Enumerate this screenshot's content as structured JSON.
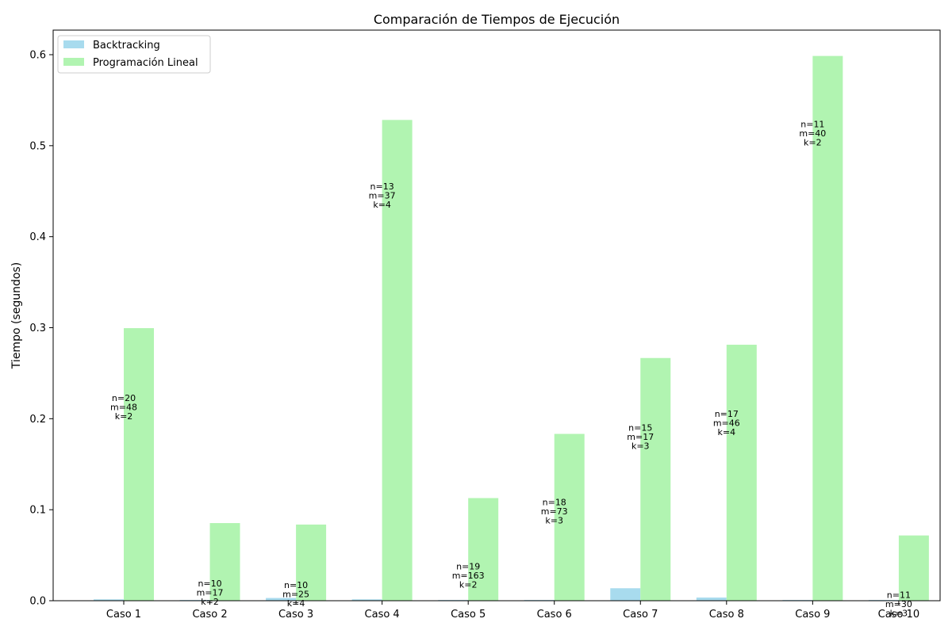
{
  "chart_data": {
    "type": "bar",
    "title": "Comparación de Tiempos de Ejecución",
    "xlabel": "",
    "ylabel": "Tiempo (segundos)",
    "ylim": [
      0,
      0.627
    ],
    "yticks": [
      "0.0",
      "0.1",
      "0.2",
      "0.3",
      "0.4",
      "0.5",
      "0.6"
    ],
    "grid": false,
    "legend_position": "top-left",
    "categories": [
      "Caso 1",
      "Caso 2",
      "Caso 3",
      "Caso 4",
      "Caso 5",
      "Caso 6",
      "Caso 7",
      "Caso 8",
      "Caso 9",
      "Caso 10"
    ],
    "series": [
      {
        "name": "Backtracking",
        "color": "#a8dbee",
        "values": [
          0.0015,
          0.0008,
          0.003,
          0.0015,
          0.0008,
          0.0008,
          0.0137,
          0.0035,
          0.0008,
          0.0008
        ]
      },
      {
        "name": "Programación Lineal",
        "color": "#b1f4b1",
        "values": [
          0.2995,
          0.0853,
          0.0837,
          0.5283,
          0.1128,
          0.1833,
          0.2667,
          0.2813,
          0.5986,
          0.0717
        ]
      }
    ],
    "annotations": [
      {
        "lines": [
          "n=20",
          "m=48",
          "k=2"
        ],
        "y": 0.2131
      },
      {
        "lines": [
          "n=10",
          "m=17",
          "k=2"
        ],
        "y": 0.0092
      },
      {
        "lines": [
          "n=10",
          "m=25",
          "k=4"
        ],
        "y": 0.0074
      },
      {
        "lines": [
          "n=13",
          "m=37",
          "k=4"
        ],
        "y": 0.4453
      },
      {
        "lines": [
          "n=19",
          "m=163",
          "k=2"
        ],
        "y": 0.0279
      },
      {
        "lines": [
          "n=18",
          "m=73",
          "k=3"
        ],
        "y": 0.0986
      },
      {
        "lines": [
          "n=15",
          "m=17",
          "k=3"
        ],
        "y": 0.1803
      },
      {
        "lines": [
          "n=17",
          "m=46",
          "k=4"
        ],
        "y": 0.1953
      },
      {
        "lines": [
          "n=11",
          "m=40",
          "k=2"
        ],
        "y": 0.514
      },
      {
        "lines": [
          "n=11",
          "m=30",
          "k=3"
        ],
        "y": -0.0036
      }
    ]
  }
}
